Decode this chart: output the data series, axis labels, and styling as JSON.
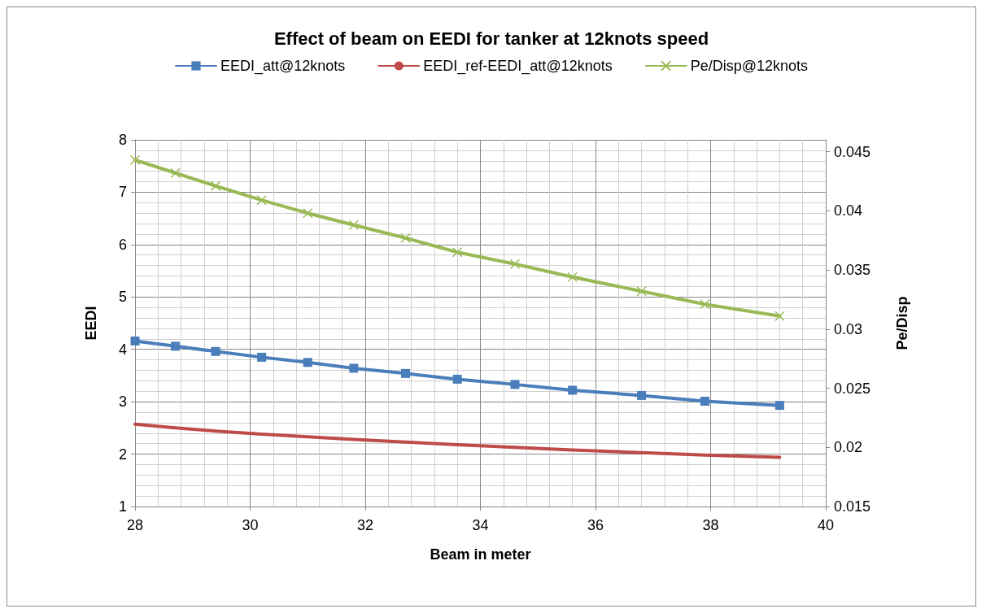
{
  "chart_data": {
    "type": "line",
    "title": "Effect of beam on EEDI for tanker at 12knots speed",
    "xlabel": "Beam in meter",
    "ylabel": "EEDI",
    "y2label": "Pe/Disp",
    "x": [
      28,
      28.7,
      29.4,
      30.2,
      31,
      31.8,
      32.7,
      33.6,
      34.6,
      35.6,
      36.8,
      37.9,
      39.2
    ],
    "series": [
      {
        "name": "EEDI_att@12knots",
        "color": "#4a7ebb",
        "marker": "square",
        "values": [
          4.16,
          4.06,
          3.96,
          3.85,
          3.75,
          3.64,
          3.54,
          3.43,
          3.33,
          3.22,
          3.12,
          3.01,
          2.93
        ]
      },
      {
        "name": "EEDI_ref-EEDI_att@12knots",
        "color": "#be4b48",
        "marker": "none",
        "values": [
          2.57,
          2.5,
          2.44,
          2.38,
          2.33,
          2.28,
          2.23,
          2.18,
          2.13,
          2.08,
          2.03,
          1.98,
          1.94
        ]
      },
      {
        "name": "Pe/Disp@12knots",
        "color": "#98b954",
        "marker": "cross",
        "axis": "y2",
        "values": [
          0.0443,
          0.0432,
          0.0421,
          0.0409,
          0.0398,
          0.0388,
          0.0377,
          0.0365,
          0.0355,
          0.0344,
          0.0332,
          0.0321,
          0.0311
        ]
      }
    ],
    "xlim": [
      28,
      40
    ],
    "xticks": [
      28,
      30,
      32,
      34,
      36,
      38,
      40
    ],
    "ylim": [
      1,
      8
    ],
    "yticks": [
      1,
      2,
      3,
      4,
      5,
      6,
      7,
      8
    ],
    "y2lim": [
      0.015,
      0.046
    ],
    "y2ticks": [
      0.015,
      0.02,
      0.025,
      0.03,
      0.035,
      0.04,
      0.045
    ],
    "grid": true,
    "legend": "top",
    "line_style": "solid"
  }
}
